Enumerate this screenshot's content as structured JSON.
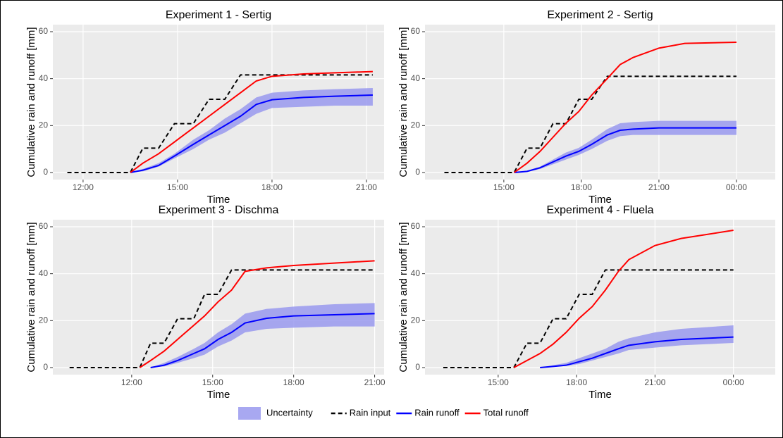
{
  "chart_data": [
    {
      "type": "line",
      "title": "Experiment 1 - Sertig",
      "xlabel": "Time",
      "ylabel": "Cumulative rain and runoff [mm]",
      "x": [
        11.5,
        13.5,
        13.9,
        14.4,
        14.9,
        15.5,
        16,
        16.5,
        17,
        17.5,
        18,
        19,
        20,
        21.2
      ],
      "xlim": [
        11.04,
        21.56
      ],
      "xticks": [
        {
          "value": 12,
          "label": "12:00"
        },
        {
          "value": 15,
          "label": "15:00"
        },
        {
          "value": 18,
          "label": "18:00"
        },
        {
          "value": 21,
          "label": "21:00"
        }
      ],
      "ylim": [
        -3,
        63
      ],
      "yticks": [
        0,
        20,
        40,
        60
      ],
      "grid": true,
      "series": [
        {
          "name": "Uncertainty",
          "color": "#9999ee",
          "lower": [
            null,
            0,
            0.5,
            2.5,
            6,
            10,
            14,
            17,
            21,
            25,
            27.5,
            28,
            28.5,
            28.5
          ],
          "upper": [
            null,
            0,
            1.5,
            4,
            8,
            14,
            18,
            23,
            27,
            32,
            34,
            35,
            35.5,
            36
          ]
        },
        {
          "name": "Rain input",
          "color": "#000000",
          "linestyle": "dashed",
          "values": [
            0,
            0,
            10.4,
            10.4,
            20.8,
            20.8,
            31.2,
            31.2,
            41.6,
            41.6,
            41.6,
            41.6,
            41.6,
            41.6
          ]
        },
        {
          "name": "Rain runoff",
          "color": "#0000ff",
          "values": [
            null,
            0,
            1,
            3,
            7,
            12,
            16,
            20,
            24,
            29,
            31,
            32,
            32.5,
            33
          ]
        },
        {
          "name": "Total runoff",
          "color": "#ff0000",
          "values": [
            null,
            0,
            4,
            8,
            13,
            19,
            24,
            29,
            34,
            39,
            41,
            42,
            42.5,
            43
          ]
        }
      ]
    },
    {
      "type": "line",
      "title": "Experiment 2 - Sertig",
      "xlabel": "Time",
      "ylabel": "Cumulative rain and runoff [mm]",
      "x": [
        12.7,
        15.4,
        15.9,
        16.4,
        16.9,
        17.4,
        17.9,
        18.4,
        19,
        19.5,
        20,
        21,
        22,
        24
      ],
      "xlim": [
        11.95,
        25.5
      ],
      "xticks": [
        {
          "value": 15,
          "label": "15:00"
        },
        {
          "value": 18,
          "label": "18:00"
        },
        {
          "value": 21,
          "label": "21:00"
        },
        {
          "value": 24,
          "label": "00:00"
        }
      ],
      "ylim": [
        -3,
        63
      ],
      "yticks": [
        0,
        20,
        40,
        60
      ],
      "grid": true,
      "series": [
        {
          "name": "Uncertainty",
          "color": "#9999ee",
          "lower": [
            null,
            0,
            0.3,
            1.5,
            3.5,
            5.5,
            7.5,
            10,
            13.5,
            15.5,
            16,
            16,
            16,
            16
          ],
          "upper": [
            null,
            0,
            0.8,
            2.5,
            5.5,
            8.5,
            10.5,
            14,
            18.5,
            21,
            21.5,
            22,
            22,
            22
          ]
        },
        {
          "name": "Rain input",
          "color": "#000000",
          "linestyle": "dashed",
          "values": [
            0,
            0,
            10.4,
            10.4,
            20.8,
            20.8,
            31.2,
            31.2,
            41,
            41,
            41,
            41,
            41,
            41
          ]
        },
        {
          "name": "Rain runoff",
          "color": "#0000ff",
          "values": [
            null,
            0,
            0.5,
            2,
            4.5,
            7,
            9,
            12,
            16,
            18,
            18.5,
            19,
            19,
            19
          ]
        },
        {
          "name": "Total runoff",
          "color": "#ff0000",
          "values": [
            null,
            0,
            4,
            9,
            15,
            21,
            26,
            33,
            40,
            46,
            49,
            53,
            55,
            55.5
          ]
        }
      ]
    },
    {
      "type": "line",
      "title": "Experiment 3 - Dischma",
      "xlabel": "Time",
      "ylabel": "Cumulative rain and runoff [mm]",
      "x": [
        9.7,
        12.3,
        12.7,
        13.2,
        13.7,
        14.3,
        14.7,
        15.2,
        15.7,
        16.2,
        17,
        18,
        19.5,
        21
      ],
      "xlim": [
        9.08,
        21.35
      ],
      "xticks": [
        {
          "value": 12,
          "label": "12:00"
        },
        {
          "value": 15,
          "label": "15:00"
        },
        {
          "value": 18,
          "label": "18:00"
        },
        {
          "value": 21,
          "label": "21:00"
        }
      ],
      "ylim": [
        -3,
        63
      ],
      "yticks": [
        0,
        20,
        40,
        60
      ],
      "grid": true,
      "series": [
        {
          "name": "Uncertainty",
          "color": "#9999ee",
          "lower": [
            null,
            null,
            0,
            0.5,
            2,
            4,
            5.5,
            9,
            11.5,
            15,
            16.5,
            17,
            17.5,
            17.5
          ],
          "upper": [
            null,
            null,
            0,
            2,
            4.5,
            8,
            10.5,
            15,
            18.5,
            23,
            25,
            26,
            27,
            27.5
          ]
        },
        {
          "name": "Rain input",
          "color": "#000000",
          "linestyle": "dashed",
          "values": [
            0,
            0,
            10.4,
            10.4,
            20.8,
            20.8,
            31.2,
            31.2,
            41.6,
            41.6,
            41.6,
            41.6,
            41.6,
            41.6
          ]
        },
        {
          "name": "Rain runoff",
          "color": "#0000ff",
          "values": [
            null,
            null,
            0,
            1,
            3,
            6,
            8,
            12,
            15,
            19,
            21,
            22,
            22.5,
            23
          ]
        },
        {
          "name": "Total runoff",
          "color": "#ff0000",
          "values": [
            null,
            0,
            3,
            7,
            12,
            18,
            22,
            28,
            33,
            41,
            42.5,
            43.5,
            44.5,
            45.5
          ]
        }
      ]
    },
    {
      "type": "line",
      "title": "Experiment 4 - Fluela",
      "xlabel": "Time",
      "ylabel": "Cumulative rain and runoff [mm]",
      "x": [
        12.9,
        15.6,
        16.1,
        16.6,
        17.1,
        17.6,
        18.1,
        18.6,
        19.1,
        19.6,
        20,
        21,
        22,
        24
      ],
      "xlim": [
        12.2,
        25.6
      ],
      "xticks": [
        {
          "value": 15,
          "label": "15:00"
        },
        {
          "value": 18,
          "label": "18:00"
        },
        {
          "value": 21,
          "label": "21:00"
        },
        {
          "value": 24,
          "label": "00:00"
        }
      ],
      "ylim": [
        -3,
        63
      ],
      "yticks": [
        0,
        20,
        40,
        60
      ],
      "grid": true,
      "series": [
        {
          "name": "Uncertainty",
          "color": "#9999ee",
          "lower": [
            null,
            null,
            null,
            0,
            0.3,
            0.7,
            1.5,
            3,
            4.5,
            6,
            7.5,
            8.5,
            9.5,
            10.5
          ],
          "upper": [
            null,
            null,
            null,
            0,
            1,
            2,
            4,
            6,
            8,
            11,
            12.5,
            15,
            16.5,
            18
          ]
        },
        {
          "name": "Rain input",
          "color": "#000000",
          "linestyle": "dashed",
          "values": [
            0,
            0,
            10.4,
            10.4,
            20.8,
            20.8,
            31.2,
            31.2,
            41.6,
            41.6,
            41.6,
            41.6,
            41.6,
            41.6
          ]
        },
        {
          "name": "Rain runoff",
          "color": "#0000ff",
          "values": [
            null,
            null,
            null,
            0,
            0.5,
            1,
            2.5,
            4,
            6,
            8,
            9.5,
            11,
            12,
            13
          ]
        },
        {
          "name": "Total runoff",
          "color": "#ff0000",
          "values": [
            null,
            0,
            3,
            6,
            10,
            15,
            21,
            26,
            33,
            41,
            46,
            52,
            55,
            58.5
          ]
        }
      ]
    }
  ]
}
